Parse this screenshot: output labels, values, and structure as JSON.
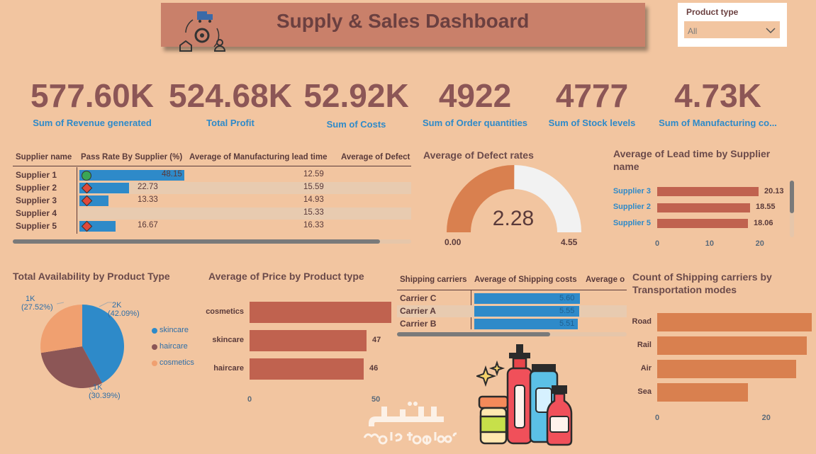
{
  "header": {
    "title": "Supply & Sales Dashboard"
  },
  "slicer": {
    "label": "Product type",
    "value": "All"
  },
  "kpis": [
    {
      "value": "577.60K",
      "label": "Sum of Revenue generated"
    },
    {
      "value": "524.68K",
      "label": "Total Profit"
    },
    {
      "value": "52.92K",
      "label": "Sum of Costs"
    },
    {
      "value": "4922",
      "label": "Sum of Order quantities"
    },
    {
      "value": "4777",
      "label": "Sum of Stock levels"
    },
    {
      "value": "4.73K",
      "label": "Sum of Manufacturing co..."
    }
  ],
  "supplier_table": {
    "headers": [
      "Supplier name",
      "Pass Rate By Supplier (%)",
      "Average of Manufacturing lead time",
      "Average of Defect"
    ],
    "rows": [
      {
        "name": "Supplier 1",
        "pass_rate": "48.15",
        "pass_fraction": 0.4815,
        "lead_time": "12.59",
        "status": "good"
      },
      {
        "name": "Supplier 2",
        "pass_rate": "22.73",
        "pass_fraction": 0.2273,
        "lead_time": "15.59",
        "status": "bad"
      },
      {
        "name": "Supplier 3",
        "pass_rate": "13.33",
        "pass_fraction": 0.1333,
        "lead_time": "14.93",
        "status": "bad"
      },
      {
        "name": "Supplier 4",
        "pass_rate": "",
        "pass_fraction": 0,
        "lead_time": "15.33",
        "status": "none"
      },
      {
        "name": "Supplier 5",
        "pass_rate": "16.67",
        "pass_fraction": 0.1667,
        "lead_time": "16.33",
        "status": "bad"
      }
    ],
    "colors": {
      "good": "#3aa655",
      "bad": "#e04a3a",
      "bar": "#2e8ac9"
    }
  },
  "gauge": {
    "title": "Average of Defect rates",
    "value": "2.28",
    "min": "0.00",
    "max": "4.55",
    "fraction": 0.5011,
    "fill_color": "#d9804f",
    "track_color": "#f2f2f2"
  },
  "lead_chart": {
    "title_line1": "Average of Lead time by Supplier",
    "title_line2": "name",
    "ticks": [
      "0",
      "10",
      "20"
    ]
  },
  "pie_section": {
    "title": "Total Availability by Product Type"
  },
  "price_section": {
    "title": "Average of Price by Product type",
    "ticks": [
      "0",
      "50"
    ]
  },
  "shipping_table": {
    "headers": [
      "Shipping carriers",
      "Average of Shipping costs",
      "Average o"
    ],
    "rows": [
      {
        "name": "Carrier C",
        "cost": "5.60",
        "fraction": 1.0
      },
      {
        "name": "Carrier A",
        "cost": "5.55",
        "fraction": 0.99
      },
      {
        "name": "Carrier B",
        "cost": "5.51",
        "fraction": 0.98
      }
    ]
  },
  "transport_chart": {
    "title_line1": "Count of Shipping carriers by",
    "title_line2": "Transportation modes",
    "ticks": [
      "0",
      "20"
    ]
  },
  "chart_data": [
    {
      "type": "gauge",
      "title": "Average of Defect rates",
      "value": 2.28,
      "min": 0.0,
      "max": 4.55
    },
    {
      "type": "bar",
      "orientation": "horizontal",
      "title": "Average of Lead time by Supplier name",
      "categories": [
        "Supplier 3",
        "Supplier 2",
        "Supplier 5"
      ],
      "values": [
        20.13,
        18.55,
        18.06
      ],
      "value_labels": [
        "20.13",
        "18.55",
        "18.06"
      ],
      "xlim": [
        0,
        25
      ],
      "color": "#c0624f"
    },
    {
      "type": "pie",
      "title": "Total Availability by Product Type",
      "categories": [
        "skincare",
        "haircare",
        "cosmetics"
      ],
      "values": [
        42.09,
        30.39,
        27.52
      ],
      "slice_labels": [
        {
          "value": "2K",
          "pct": "(42.09%)"
        },
        {
          "value": "1K",
          "pct": "(30.39%)"
        },
        {
          "value": "1K",
          "pct": "(27.52%)"
        }
      ],
      "colors": [
        "#2e8ac9",
        "#8c5656",
        "#f0a070"
      ],
      "legend": "right"
    },
    {
      "type": "bar",
      "orientation": "horizontal",
      "title": "Average of Price by Product type",
      "categories": [
        "cosmetics",
        "skincare",
        "haircare"
      ],
      "values": [
        57,
        47,
        46
      ],
      "value_labels": [
        "57",
        "47",
        "46"
      ],
      "xlim": [
        0,
        60
      ],
      "color": "#c0624f"
    },
    {
      "type": "bar",
      "orientation": "horizontal",
      "title": "Count of Shipping carriers by Transportation modes",
      "categories": [
        "Road",
        "Rail",
        "Air",
        "Sea"
      ],
      "values": [
        29,
        28,
        26,
        17
      ],
      "xlim": [
        0,
        30
      ],
      "color": "#d9804f"
    }
  ],
  "watermark": {
    "text_ar": "مستقل",
    "text": "mostaql.com"
  }
}
